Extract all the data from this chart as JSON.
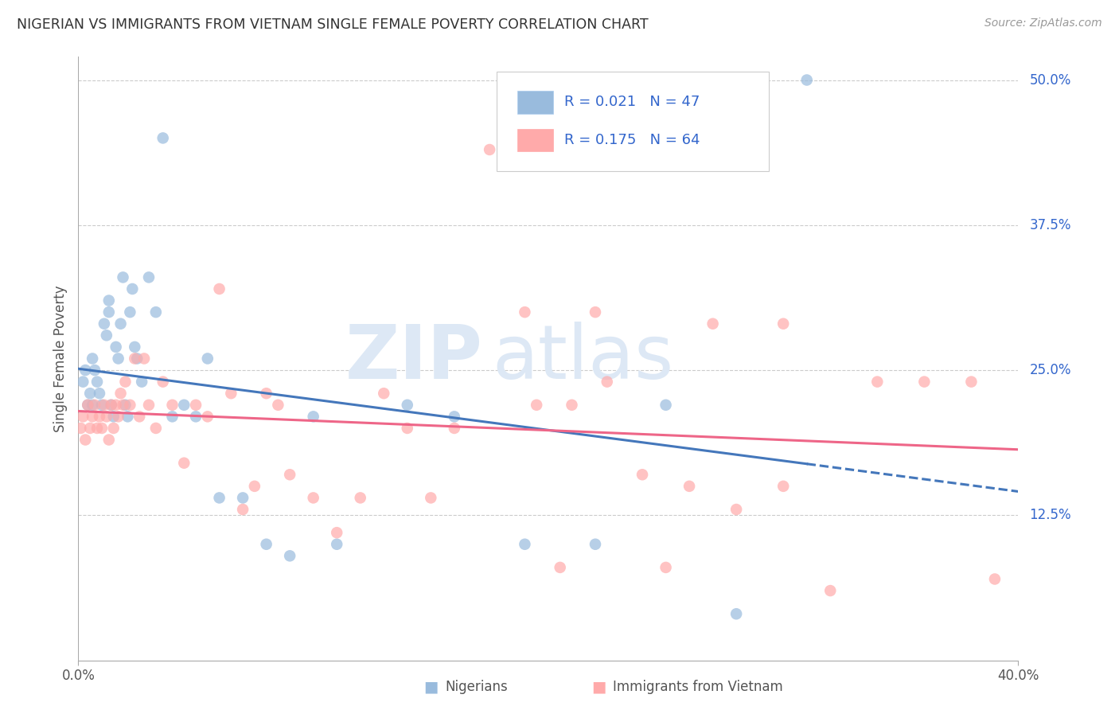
{
  "title": "NIGERIAN VS IMMIGRANTS FROM VIETNAM SINGLE FEMALE POVERTY CORRELATION CHART",
  "source": "Source: ZipAtlas.com",
  "ylabel": "Single Female Poverty",
  "y_ticks": [
    "12.5%",
    "25.0%",
    "37.5%",
    "50.0%"
  ],
  "y_tick_vals": [
    0.125,
    0.25,
    0.375,
    0.5
  ],
  "legend_label1": "Nigerians",
  "legend_label2": "Immigrants from Vietnam",
  "R1": "0.021",
  "N1": "47",
  "R2": "0.175",
  "N2": "64",
  "color_blue": "#99BBDD",
  "color_blue_line": "#4477BB",
  "color_pink": "#FFAAAA",
  "color_pink_line": "#EE6688",
  "color_blue_text": "#3366CC",
  "watermark_zip": "ZIP",
  "watermark_atlas": "atlas",
  "xlim": [
    0.0,
    0.4
  ],
  "ylim": [
    0.0,
    0.52
  ],
  "nigerian_x": [
    0.002,
    0.003,
    0.004,
    0.005,
    0.006,
    0.006,
    0.007,
    0.008,
    0.009,
    0.01,
    0.011,
    0.012,
    0.013,
    0.013,
    0.014,
    0.015,
    0.016,
    0.017,
    0.018,
    0.019,
    0.02,
    0.021,
    0.022,
    0.023,
    0.024,
    0.025,
    0.027,
    0.03,
    0.033,
    0.036,
    0.04,
    0.045,
    0.05,
    0.055,
    0.06,
    0.07,
    0.08,
    0.09,
    0.1,
    0.11,
    0.14,
    0.16,
    0.19,
    0.22,
    0.25,
    0.28,
    0.31
  ],
  "nigerian_y": [
    0.24,
    0.25,
    0.22,
    0.23,
    0.22,
    0.26,
    0.25,
    0.24,
    0.23,
    0.22,
    0.29,
    0.28,
    0.3,
    0.31,
    0.22,
    0.21,
    0.27,
    0.26,
    0.29,
    0.33,
    0.22,
    0.21,
    0.3,
    0.32,
    0.27,
    0.26,
    0.24,
    0.33,
    0.3,
    0.45,
    0.21,
    0.22,
    0.21,
    0.26,
    0.14,
    0.14,
    0.1,
    0.09,
    0.21,
    0.1,
    0.22,
    0.21,
    0.1,
    0.1,
    0.22,
    0.04,
    0.5
  ],
  "vietnam_x": [
    0.001,
    0.002,
    0.003,
    0.004,
    0.005,
    0.006,
    0.007,
    0.008,
    0.009,
    0.01,
    0.011,
    0.012,
    0.013,
    0.014,
    0.015,
    0.016,
    0.017,
    0.018,
    0.019,
    0.02,
    0.022,
    0.024,
    0.026,
    0.028,
    0.03,
    0.033,
    0.036,
    0.04,
    0.045,
    0.05,
    0.055,
    0.06,
    0.065,
    0.07,
    0.075,
    0.08,
    0.085,
    0.09,
    0.1,
    0.11,
    0.12,
    0.13,
    0.14,
    0.15,
    0.16,
    0.175,
    0.19,
    0.205,
    0.22,
    0.24,
    0.26,
    0.28,
    0.3,
    0.32,
    0.34,
    0.36,
    0.38,
    0.39,
    0.195,
    0.21,
    0.225,
    0.25,
    0.27,
    0.3
  ],
  "vietnam_y": [
    0.2,
    0.21,
    0.19,
    0.22,
    0.2,
    0.21,
    0.22,
    0.2,
    0.21,
    0.2,
    0.22,
    0.21,
    0.19,
    0.22,
    0.2,
    0.22,
    0.21,
    0.23,
    0.22,
    0.24,
    0.22,
    0.26,
    0.21,
    0.26,
    0.22,
    0.2,
    0.24,
    0.22,
    0.17,
    0.22,
    0.21,
    0.32,
    0.23,
    0.13,
    0.15,
    0.23,
    0.22,
    0.16,
    0.14,
    0.11,
    0.14,
    0.23,
    0.2,
    0.14,
    0.2,
    0.44,
    0.3,
    0.08,
    0.3,
    0.16,
    0.15,
    0.13,
    0.15,
    0.06,
    0.24,
    0.24,
    0.24,
    0.07,
    0.22,
    0.22,
    0.24,
    0.08,
    0.29,
    0.29
  ]
}
